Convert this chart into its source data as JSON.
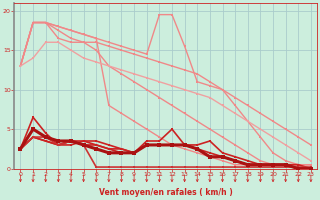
{
  "xlabel": "Vent moyen/en rafales ( km/h )",
  "bg_color": "#cceedd",
  "grid_color": "#aacccc",
  "x_values": [
    0,
    1,
    2,
    3,
    4,
    5,
    6,
    7,
    8,
    9,
    10,
    11,
    12,
    13,
    14,
    15,
    16,
    17,
    18,
    19,
    20,
    21,
    22,
    23
  ],
  "lines": [
    {
      "y": [
        13,
        18.5,
        18.5,
        16.5,
        16,
        16,
        16,
        15.5,
        15,
        14.5,
        14,
        13.5,
        13,
        12.5,
        12,
        11,
        10,
        9,
        8,
        7,
        6,
        5,
        4,
        3
      ],
      "color": "#f08888",
      "lw": 1.0,
      "marker": "s",
      "ms": 1.8,
      "zorder": 2
    },
    {
      "y": [
        13,
        18.5,
        18.5,
        17.5,
        16.5,
        16,
        15,
        13,
        12,
        11,
        10,
        9,
        8,
        7,
        6,
        5,
        4,
        3,
        2,
        1,
        0.5,
        0.5,
        0.5,
        0.5
      ],
      "color": "#f08888",
      "lw": 1.0,
      "marker": "s",
      "ms": 1.8,
      "zorder": 2
    },
    {
      "y": [
        13,
        18.5,
        18.5,
        18,
        17.5,
        17,
        16.5,
        16,
        15.5,
        15,
        14.5,
        19.5,
        19.5,
        15.5,
        11,
        10.5,
        10,
        8,
        6,
        4,
        2,
        1,
        0.5,
        0.5
      ],
      "color": "#f08888",
      "lw": 1.0,
      "marker": "s",
      "ms": 1.8,
      "zorder": 2
    },
    {
      "y": [
        13,
        18.5,
        18.5,
        18,
        17.5,
        17,
        16.5,
        8,
        7,
        6,
        5,
        4,
        3,
        2.5,
        2,
        1.5,
        1,
        0.5,
        0.5,
        0.5,
        0.5,
        0.5,
        0.5,
        0.5
      ],
      "color": "#f08888",
      "lw": 1.0,
      "marker": "s",
      "ms": 1.8,
      "zorder": 2
    },
    {
      "y": [
        13,
        14,
        16,
        16,
        15,
        14,
        13.5,
        13,
        12.5,
        12,
        11.5,
        11,
        10.5,
        10,
        9.5,
        9,
        8,
        7,
        6,
        5,
        4,
        3,
        2,
        1
      ],
      "color": "#f0a0a0",
      "lw": 1.0,
      "marker": "s",
      "ms": 1.8,
      "zorder": 2
    },
    {
      "y": [
        2.5,
        6.5,
        4.5,
        3,
        3,
        3.5,
        3.5,
        3,
        2.5,
        2,
        3.5,
        3.5,
        5,
        3,
        3,
        3.5,
        2,
        1.5,
        1,
        0.5,
        0.5,
        0.5,
        0.5,
        0
      ],
      "color": "#cc2222",
      "lw": 1.2,
      "marker": "s",
      "ms": 2.0,
      "zorder": 4
    },
    {
      "y": [
        2.5,
        4,
        3.5,
        3,
        3.5,
        3.5,
        3,
        2.5,
        2.5,
        2,
        3,
        3,
        3,
        3,
        2.5,
        2,
        1.5,
        1,
        0.5,
        0.5,
        0.5,
        0.5,
        0,
        0
      ],
      "color": "#cc2222",
      "lw": 1.2,
      "marker": "s",
      "ms": 2.0,
      "zorder": 4
    },
    {
      "y": [
        2.5,
        4,
        3.5,
        3,
        3.5,
        3,
        3,
        2.5,
        2,
        2,
        3,
        3,
        3,
        3,
        2.5,
        1.5,
        1.5,
        1,
        0.5,
        0.5,
        0.5,
        0.5,
        0,
        0
      ],
      "color": "#cc2222",
      "lw": 1.2,
      "marker": "s",
      "ms": 2.0,
      "zorder": 4
    },
    {
      "y": [
        2.5,
        4,
        4,
        3,
        3.5,
        3,
        0.2,
        0.2,
        0.2,
        0.2,
        0.2,
        0.2,
        0.2,
        0.2,
        0.2,
        0.2,
        0.2,
        0.2,
        0.2,
        0.2,
        0.2,
        0.2,
        0.2,
        0.2
      ],
      "color": "#cc3333",
      "lw": 1.2,
      "marker": "s",
      "ms": 2.0,
      "zorder": 4
    },
    {
      "y": [
        2.5,
        5,
        4,
        3.5,
        3.5,
        3,
        2.5,
        2,
        2,
        2,
        3,
        3,
        3,
        3,
        2.5,
        1.5,
        1.5,
        1,
        0.5,
        0.5,
        0.5,
        0.5,
        0,
        0
      ],
      "color": "#aa1111",
      "lw": 2.2,
      "marker": "s",
      "ms": 3.0,
      "zorder": 5
    }
  ],
  "ylim": [
    0,
    21
  ],
  "xlim": [
    -0.5,
    23.5
  ],
  "yticks": [
    0,
    5,
    10,
    15,
    20
  ],
  "xticks": [
    0,
    1,
    2,
    3,
    4,
    5,
    6,
    7,
    8,
    9,
    10,
    11,
    12,
    13,
    14,
    15,
    16,
    17,
    18,
    19,
    20,
    21,
    22,
    23
  ],
  "tick_color": "#cc2222",
  "xlabel_color": "#cc2222",
  "arrow_color": "#cc2222",
  "spine_left_color": "#888888"
}
